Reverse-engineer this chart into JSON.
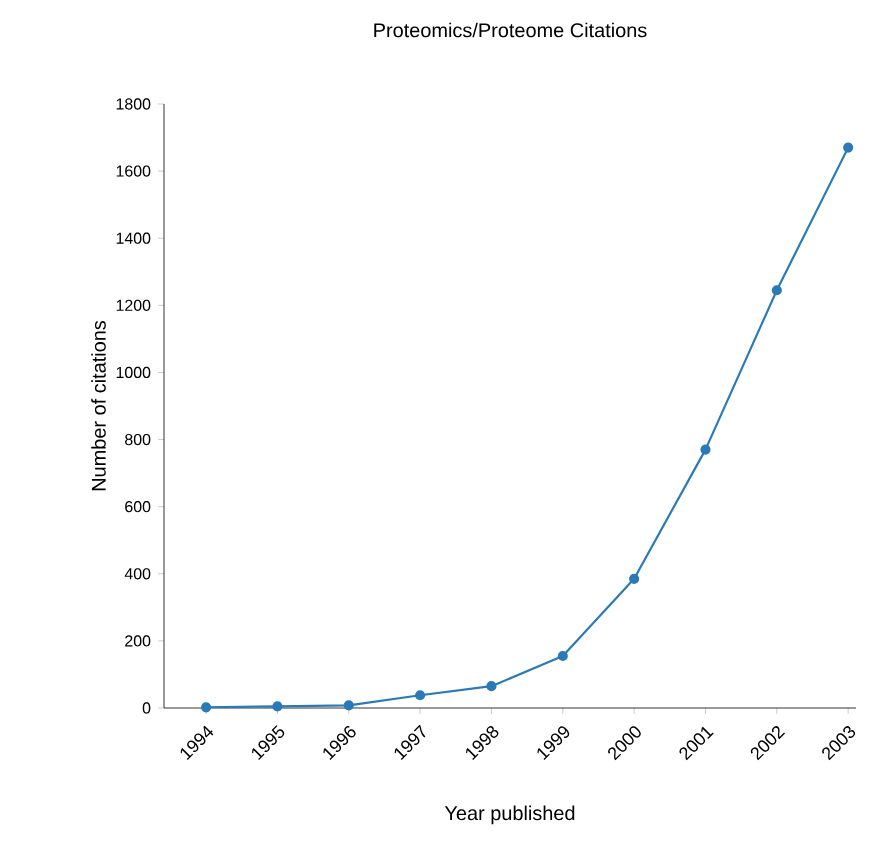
{
  "chart_data": {
    "type": "line",
    "title": "Proteomics/Proteome Citations",
    "xlabel": "Year published",
    "ylabel": "Number of citations",
    "categories": [
      "1994",
      "1995",
      "1996",
      "1997",
      "1998",
      "1999",
      "2000",
      "2001",
      "2002",
      "2003"
    ],
    "values": [
      2,
      5,
      8,
      38,
      65,
      155,
      385,
      770,
      1245,
      1670
    ],
    "color": "#2a7ab8",
    "marker": "circle",
    "line_style": "solid",
    "grid": false,
    "ylim": [
      0,
      1800
    ],
    "yticks": [
      0,
      200,
      400,
      600,
      800,
      1000,
      1200,
      1400,
      1600,
      1800
    ]
  }
}
